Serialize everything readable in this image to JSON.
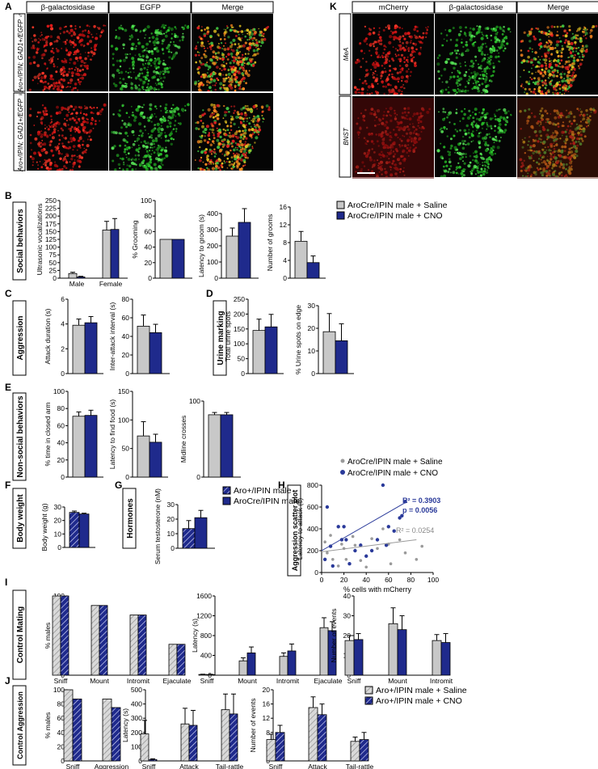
{
  "colors": {
    "saline": "#c8c8c8",
    "cno": "#1f2a8c",
    "red": "#c81212",
    "green": "#22b422",
    "olive": "#8a8a2a",
    "axis": "#000",
    "scatter_saline": "#9a9a9a",
    "scatter_cno": "#2a3a9a",
    "fit_cno": "#2a3a9a",
    "fit_saline": "#9a9a9a"
  },
  "panel_letters": {
    "A": "A",
    "B": "B",
    "C": "C",
    "D": "D",
    "E": "E",
    "F": "F",
    "G": "G",
    "H": "H",
    "I": "I",
    "J": "J",
    "K": "K"
  },
  "micro_A": {
    "headers": [
      "β-galactosidase",
      "EGFP",
      "Merge"
    ],
    "row_labels": [
      "Aro+/IPIN; GAD1+/EGFP ♂",
      "Aro+/IPIN; GAD1+/EGFP ♀"
    ]
  },
  "micro_K": {
    "headers": [
      "mCherry",
      "β-galactosidase",
      "Merge"
    ],
    "row_labels": [
      "MeA",
      "BNST"
    ]
  },
  "group_labels": {
    "B": "Social behaviors",
    "C": "Aggression",
    "D": "Urine marking",
    "E": "Non-social behaviors",
    "F": "Body weight",
    "G": "Hormones",
    "H": "Aggression scatter plot",
    "I": "Control Mating",
    "J": "Control Aggression"
  },
  "legend_B": {
    "saline": "AroCre/IPIN male + Saline",
    "cno": "AroCre/IPIN male + CNO"
  },
  "legend_F": {
    "wt": "Aro+/IPIN male",
    "cre": "AroCre/IPIN male"
  },
  "legend_H": {
    "saline": "AroCre/IPIN male + Saline",
    "cno": "AroCre/IPIN male + CNO",
    "r2_cno": "R² = 0.3903",
    "p_cno": "p = 0.0056",
    "r2_saline": "R² = 0.0254"
  },
  "legend_J": {
    "saline": "Aro+/IPIN male + Saline",
    "cno": "Aro+/IPIN male + CNO"
  },
  "chart_data": [
    {
      "id": "B1",
      "type": "bar",
      "ylabel": "Ultrasonic vocalizations",
      "ylim": [
        0,
        250
      ],
      "yticks": [
        0,
        25,
        50,
        75,
        100,
        125,
        150,
        175,
        200,
        225,
        250
      ],
      "categories": [
        "Male",
        "Female"
      ],
      "series": [
        {
          "values": [
            15,
            155
          ],
          "err": [
            4,
            28
          ]
        },
        {
          "values": [
            4,
            157
          ],
          "err": [
            2,
            35
          ]
        }
      ]
    },
    {
      "id": "B2",
      "type": "bar",
      "ylabel": "% Grooming",
      "ylim": [
        0,
        100
      ],
      "yticks": [
        0,
        20,
        40,
        60,
        80,
        100
      ],
      "categories": [
        ""
      ],
      "series": [
        {
          "values": [
            50
          ],
          "err": [
            0
          ]
        },
        {
          "values": [
            50
          ],
          "err": [
            0
          ]
        }
      ]
    },
    {
      "id": "B3",
      "type": "bar",
      "ylabel": "Latency to groom (s)",
      "ylim": [
        0,
        400
      ],
      "yticks": [
        0,
        100,
        200,
        300,
        400
      ],
      "categories": [
        ""
      ],
      "series": [
        {
          "values": [
            260
          ],
          "err": [
            50
          ]
        },
        {
          "values": [
            345
          ],
          "err": [
            85
          ]
        }
      ]
    },
    {
      "id": "B4",
      "type": "bar",
      "ylabel": "Number of grooms",
      "ylim": [
        0,
        16
      ],
      "yticks": [
        0,
        4,
        8,
        12,
        16
      ],
      "categories": [
        ""
      ],
      "series": [
        {
          "values": [
            8.3
          ],
          "err": [
            2.2
          ]
        },
        {
          "values": [
            3.5
          ],
          "err": [
            1.5
          ]
        }
      ]
    },
    {
      "id": "C1",
      "type": "bar",
      "ylabel": "Attack duration (s)",
      "ylim": [
        0,
        6
      ],
      "yticks": [
        0,
        2,
        4,
        6
      ],
      "categories": [
        ""
      ],
      "series": [
        {
          "values": [
            3.9
          ],
          "err": [
            0.5
          ]
        },
        {
          "values": [
            4.1
          ],
          "err": [
            0.5
          ]
        }
      ]
    },
    {
      "id": "C2",
      "type": "bar",
      "ylabel": "Inter-attack interval (s)",
      "ylim": [
        0,
        80
      ],
      "yticks": [
        0,
        20,
        40,
        60,
        80
      ],
      "categories": [
        ""
      ],
      "series": [
        {
          "values": [
            51
          ],
          "err": [
            12
          ]
        },
        {
          "values": [
            44
          ],
          "err": [
            9
          ]
        }
      ]
    },
    {
      "id": "D1",
      "type": "bar",
      "ylabel": "Total urine spots",
      "ylim": [
        0,
        250
      ],
      "yticks": [
        0,
        50,
        100,
        150,
        200,
        250
      ],
      "categories": [
        ""
      ],
      "series": [
        {
          "values": [
            145
          ],
          "err": [
            38
          ]
        },
        {
          "values": [
            157
          ],
          "err": [
            42
          ]
        }
      ]
    },
    {
      "id": "D2",
      "type": "bar",
      "ylabel": "% Urine spots on edge",
      "ylim": [
        0,
        30
      ],
      "yticks": [
        0,
        10,
        20,
        30
      ],
      "categories": [
        ""
      ],
      "series": [
        {
          "values": [
            18.5
          ],
          "err": [
            8
          ]
        },
        {
          "values": [
            14.5
          ],
          "err": [
            7.5
          ]
        }
      ]
    },
    {
      "id": "E1",
      "type": "bar",
      "ylabel": "% time in closed arm",
      "ylim": [
        0,
        100
      ],
      "yticks": [
        0,
        20,
        40,
        60,
        80,
        100
      ],
      "categories": [
        ""
      ],
      "series": [
        {
          "values": [
            71
          ],
          "err": [
            5
          ]
        },
        {
          "values": [
            72
          ],
          "err": [
            6
          ]
        }
      ]
    },
    {
      "id": "E2",
      "type": "bar",
      "ylabel": "Latency to find food (s)",
      "ylim": [
        0,
        150
      ],
      "yticks": [
        0,
        50,
        100,
        150
      ],
      "categories": [
        ""
      ],
      "series": [
        {
          "values": [
            72
          ],
          "err": [
            25
          ]
        },
        {
          "values": [
            61
          ],
          "err": [
            14
          ]
        }
      ]
    },
    {
      "id": "E3",
      "type": "bar",
      "ylabel": "Midline crosses",
      "ylim": [
        0,
        100
      ],
      "yticks": [
        0,
        100
      ],
      "categories": [
        ""
      ],
      "series": [
        {
          "values": [
            82
          ],
          "err": [
            3
          ]
        },
        {
          "values": [
            82
          ],
          "err": [
            3
          ]
        }
      ]
    },
    {
      "id": "F",
      "type": "bar",
      "ylabel": "Body weight (g)",
      "ylim": [
        0,
        30
      ],
      "yticks": [
        0,
        10,
        20,
        30
      ],
      "categories": [
        ""
      ],
      "series": [
        {
          "values": [
            26
          ],
          "err": [
            1
          ]
        },
        {
          "values": [
            24.8
          ],
          "err": [
            0.6
          ]
        }
      ]
    },
    {
      "id": "G",
      "type": "bar",
      "ylabel": "Serum testosterone (nM)",
      "ylim": [
        0,
        30
      ],
      "yticks": [
        0,
        10,
        20,
        30
      ],
      "categories": [
        ""
      ],
      "series": [
        {
          "values": [
            13.5
          ],
          "err": [
            5.5
          ]
        },
        {
          "values": [
            21
          ],
          "err": [
            5
          ]
        }
      ]
    },
    {
      "id": "H",
      "type": "scatter",
      "xlabel": "% cells with mCherry",
      "ylabel": "Latency to attack (s)",
      "xlim": [
        0,
        100
      ],
      "ylim": [
        0,
        800
      ],
      "xticks": [
        0,
        20,
        40,
        60,
        80,
        100
      ],
      "yticks": [
        0,
        200,
        400,
        600,
        800
      ],
      "saline": [
        [
          3,
          280
        ],
        [
          5,
          180
        ],
        [
          8,
          340
        ],
        [
          10,
          120
        ],
        [
          15,
          60
        ],
        [
          18,
          260
        ],
        [
          20,
          220
        ],
        [
          22,
          120
        ],
        [
          28,
          330
        ],
        [
          30,
          250
        ],
        [
          35,
          110
        ],
        [
          40,
          50
        ],
        [
          45,
          310
        ],
        [
          50,
          220
        ],
        [
          55,
          400
        ],
        [
          60,
          260
        ],
        [
          62,
          80
        ],
        [
          70,
          300
        ],
        [
          75,
          180
        ],
        [
          85,
          120
        ],
        [
          90,
          240
        ]
      ],
      "cno": [
        [
          3,
          120
        ],
        [
          5,
          600
        ],
        [
          8,
          240
        ],
        [
          10,
          60
        ],
        [
          15,
          420
        ],
        [
          18,
          300
        ],
        [
          20,
          420
        ],
        [
          22,
          300
        ],
        [
          25,
          80
        ],
        [
          30,
          200
        ],
        [
          35,
          250
        ],
        [
          40,
          150
        ],
        [
          45,
          200
        ],
        [
          50,
          300
        ],
        [
          55,
          800
        ],
        [
          58,
          250
        ],
        [
          60,
          420
        ],
        [
          65,
          380
        ],
        [
          70,
          500
        ],
        [
          72,
          520
        ],
        [
          75,
          650
        ]
      ],
      "fit_cno": [
        [
          0,
          200
        ],
        [
          75,
          640
        ]
      ],
      "fit_saline": [
        [
          0,
          190
        ],
        [
          85,
          300
        ]
      ]
    },
    {
      "id": "I1",
      "type": "bar",
      "ylabel": "% males",
      "ylim": [
        0,
        100
      ],
      "yticks": [
        0,
        20,
        40,
        60,
        80,
        100
      ],
      "categories": [
        "Sniff",
        "Mount",
        "Intromit",
        "Ejaculate"
      ],
      "series": [
        {
          "values": [
            100,
            88,
            76,
            39
          ],
          "err": [
            0,
            0,
            0,
            0
          ]
        },
        {
          "values": [
            100,
            88,
            76,
            39
          ],
          "err": [
            0,
            0,
            0,
            0
          ]
        }
      ]
    },
    {
      "id": "I2",
      "type": "bar",
      "ylabel": "Latency (s)",
      "ylim": [
        0,
        1600
      ],
      "yticks": [
        0,
        400,
        800,
        1200,
        1600
      ],
      "categories": [
        "Sniff",
        "Mount",
        "Intromit",
        "Ejaculate"
      ],
      "series": [
        {
          "values": [
            15,
            290,
            380,
            960
          ],
          "err": [
            5,
            60,
            70,
            200
          ]
        },
        {
          "values": [
            12,
            450,
            490,
            900
          ],
          "err": [
            5,
            120,
            140,
            180
          ]
        }
      ]
    },
    {
      "id": "I3",
      "type": "bar",
      "ylabel": "Number of events",
      "ylim": [
        0,
        40
      ],
      "yticks": [
        0,
        10,
        20,
        30,
        40
      ],
      "categories": [
        "Sniff",
        "Mount",
        "Intromit"
      ],
      "series": [
        {
          "values": [
            17.5,
            26,
            17.5
          ],
          "err": [
            2.5,
            8,
            3
          ]
        },
        {
          "values": [
            18,
            23,
            16.5
          ],
          "err": [
            3,
            7,
            4.5
          ]
        }
      ]
    },
    {
      "id": "J1",
      "type": "bar",
      "ylabel": "% males",
      "ylim": [
        0,
        100
      ],
      "yticks": [
        0,
        20,
        40,
        60,
        80,
        100
      ],
      "categories": [
        "Sniff",
        "Aggression"
      ],
      "series": [
        {
          "values": [
            100,
            87
          ],
          "err": [
            0,
            0
          ]
        },
        {
          "values": [
            87,
            75
          ],
          "err": [
            0,
            0
          ]
        }
      ]
    },
    {
      "id": "J2",
      "type": "bar",
      "ylabel": "Latency (s)",
      "ylim": [
        0,
        500
      ],
      "yticks": [
        0,
        100,
        200,
        300,
        400,
        500
      ],
      "categories": [
        "Sniff",
        "Attack",
        "Tail-rattle"
      ],
      "series": [
        {
          "values": [
            190,
            260,
            360
          ],
          "err": [
            95,
            110,
            110
          ]
        },
        {
          "values": [
            10,
            250,
            330
          ],
          "err": [
            5,
            105,
            140
          ]
        }
      ]
    },
    {
      "id": "J3",
      "type": "bar",
      "ylabel": "Number of events",
      "ylim": [
        0,
        20
      ],
      "yticks": [
        0,
        4,
        8,
        12,
        16,
        20
      ],
      "categories": [
        "Sniff",
        "Attack",
        "Tail-rattle"
      ],
      "series": [
        {
          "values": [
            6,
            15,
            5.5
          ],
          "err": [
            1.5,
            3,
            1.2
          ]
        },
        {
          "values": [
            8,
            13,
            6
          ],
          "err": [
            2,
            3,
            2
          ]
        }
      ]
    }
  ]
}
